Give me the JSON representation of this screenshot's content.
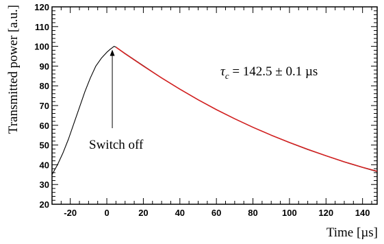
{
  "chart_data": {
    "type": "line",
    "title": "",
    "xlabel": "Time [µs]",
    "ylabel": "Transmitted power [a.u.]",
    "xlim": [
      -30,
      148
    ],
    "ylim": [
      20,
      120
    ],
    "xticks": [
      -20,
      0,
      20,
      40,
      60,
      80,
      100,
      120,
      140
    ],
    "yticks": [
      20,
      30,
      40,
      50,
      60,
      70,
      80,
      90,
      100,
      110,
      120
    ],
    "grid": false,
    "series": [
      {
        "kind": "measured",
        "color": "#000000",
        "x": [
          -30,
          -27,
          -24,
          -21,
          -18,
          -15,
          -12,
          -9,
          -6,
          -3,
          0,
          2,
          3,
          4,
          5,
          10,
          20,
          30,
          40,
          50,
          60,
          70,
          80,
          90,
          100,
          110,
          120,
          130,
          140,
          148
        ],
        "y": [
          35,
          40,
          46,
          53,
          61,
          69,
          77,
          84,
          90,
          94,
          97,
          98.6,
          99.3,
          100,
          99.6,
          96.4,
          90.2,
          84.0,
          78.3,
          72.9,
          67.9,
          63.3,
          59.0,
          55.0,
          51.2,
          47.7,
          44.5,
          41.4,
          38.6,
          36.5
        ]
      },
      {
        "kind": "fit",
        "color": "#d42020",
        "x": [
          5,
          10,
          20,
          30,
          40,
          50,
          60,
          70,
          80,
          90,
          100,
          110,
          120,
          130,
          140,
          148
        ],
        "y": [
          99.6,
          96.3,
          90.0,
          84.0,
          78.3,
          72.9,
          67.9,
          63.3,
          59.0,
          55.0,
          51.3,
          47.8,
          44.6,
          41.5,
          38.7,
          36.7
        ]
      }
    ],
    "annotations": [
      {
        "text": "Switch off",
        "arrow_to": [
          3,
          99
        ]
      },
      {
        "text": "τc = 142.5 ± 0.1 µs"
      }
    ]
  }
}
